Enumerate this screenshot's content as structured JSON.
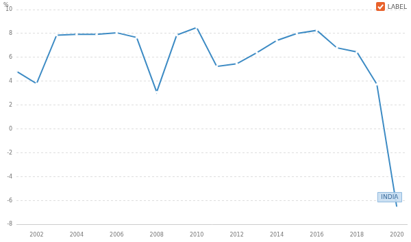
{
  "chart_data": {
    "type": "line",
    "ylabel": "%",
    "x": [
      2001,
      2002,
      2003,
      2004,
      2005,
      2006,
      2007,
      2008,
      2009,
      2010,
      2011,
      2012,
      2013,
      2014,
      2015,
      2016,
      2017,
      2018,
      2019,
      2020
    ],
    "values": [
      4.82,
      3.8,
      7.86,
      7.92,
      7.92,
      8.06,
      7.66,
      3.09,
      7.86,
      8.5,
      5.24,
      5.46,
      6.39,
      7.41,
      8.0,
      8.26,
      6.8,
      6.45,
      3.74,
      -6.6
    ],
    "color": "#3d8bc4",
    "marker": "circle",
    "xlim": [
      2001,
      2020.5
    ],
    "xticks": [
      2002,
      2004,
      2006,
      2008,
      2010,
      2012,
      2014,
      2016,
      2018,
      2020
    ],
    "ylim": [
      -8,
      10
    ],
    "yticks": [
      -8,
      -6,
      -4,
      -2,
      0,
      2,
      4,
      6,
      8,
      10
    ],
    "grid": true,
    "annotations": [
      {
        "text": "LABEL"
      },
      {
        "text": "INDIA",
        "x": 2020,
        "y": -6.6
      }
    ]
  }
}
